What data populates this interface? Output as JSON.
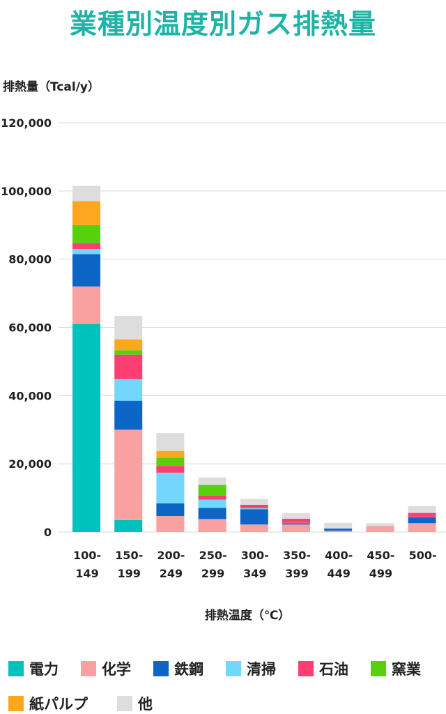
{
  "title": "業種別温度別ガス排熱量",
  "chart_data": {
    "type": "bar",
    "stacked": true,
    "ylabel": "排熱量（Tcal/y）",
    "xlabel": "排熱温度（℃）",
    "ylim": [
      0,
      120000
    ],
    "yticks": [
      0,
      20000,
      40000,
      60000,
      80000,
      100000,
      120000
    ],
    "ytick_labels": [
      "0",
      "20,000",
      "40,000",
      "60,000",
      "80,000",
      "100,000",
      "120,000"
    ],
    "grid": true,
    "legend": "bottom",
    "categories": [
      [
        "100-",
        "149"
      ],
      [
        "150-",
        "199"
      ],
      [
        "200-",
        "249"
      ],
      [
        "250-",
        "299"
      ],
      [
        "300-",
        "349"
      ],
      [
        "350-",
        "399"
      ],
      [
        "400-",
        "449"
      ],
      [
        "450-",
        "499"
      ],
      [
        "500-",
        ""
      ]
    ],
    "series": [
      {
        "name": "電力",
        "color": "#00c2bd",
        "values": [
          61000,
          3500,
          0,
          0,
          0,
          0,
          0,
          0,
          0
        ]
      },
      {
        "name": "化学",
        "color": "#f9a0a0",
        "values": [
          11000,
          26500,
          4700,
          3800,
          2200,
          2200,
          400,
          1800,
          2600
        ]
      },
      {
        "name": "鉄鋼",
        "color": "#0d65c6",
        "values": [
          9500,
          8500,
          3700,
          3300,
          4500,
          400,
          600,
          0,
          1700
        ]
      },
      {
        "name": "清掃",
        "color": "#73d7fd",
        "values": [
          1500,
          6300,
          9000,
          2400,
          300,
          100,
          100,
          0,
          100
        ]
      },
      {
        "name": "石油",
        "color": "#fc3f70",
        "values": [
          1700,
          7200,
          2000,
          1200,
          1000,
          1200,
          0,
          0,
          1200
        ]
      },
      {
        "name": "窯業",
        "color": "#59d00c",
        "values": [
          5300,
          1300,
          2400,
          3100,
          0,
          0,
          0,
          0,
          0
        ]
      },
      {
        "name": "紙パルプ",
        "color": "#fda71e",
        "values": [
          7000,
          3200,
          2000,
          0,
          0,
          0,
          0,
          0,
          0
        ]
      },
      {
        "name": "他",
        "color": "#dddddd",
        "values": [
          4500,
          6900,
          5200,
          2200,
          1700,
          1600,
          1600,
          800,
          2000
        ]
      }
    ]
  }
}
